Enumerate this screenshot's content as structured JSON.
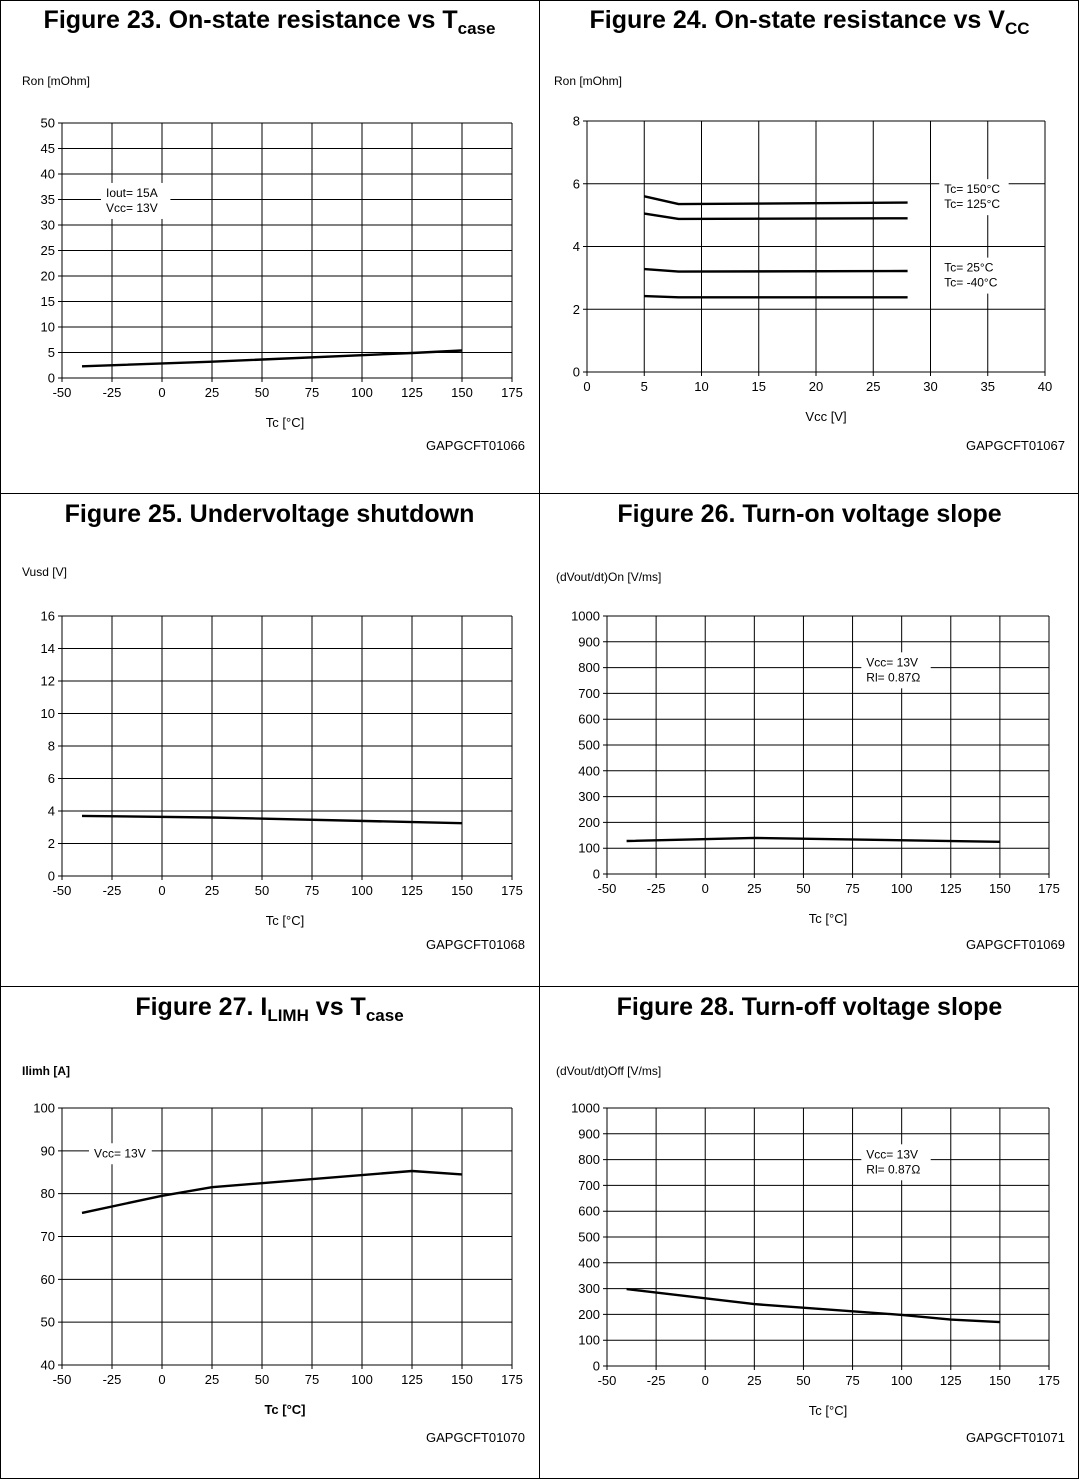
{
  "figures": [
    {
      "title_main": "Figure 23. On-state resistance vs T",
      "title_sub": "case",
      "code": "GAPGCFT01066",
      "chart_data": {
        "type": "line",
        "xlabel": "Tc [°C]",
        "ylabel": "Ron [mOhm]",
        "xlim": [
          -50,
          175
        ],
        "xticks": [
          -50,
          -25,
          0,
          25,
          50,
          75,
          100,
          125,
          150,
          175
        ],
        "ylim": [
          0,
          50
        ],
        "yticks": [
          0,
          5,
          10,
          15,
          20,
          25,
          30,
          35,
          40,
          45,
          50
        ],
        "label_bold": false,
        "series": [
          {
            "x": [
              -40,
              25,
              125,
              150
            ],
            "y": [
              2.3,
              3.2,
              4.9,
              5.4
            ]
          }
        ],
        "annotations": [
          {
            "lines": [
              "Iout= 15A",
              "Vcc= 13V"
            ],
            "x": -28,
            "y": 35.5
          }
        ]
      }
    },
    {
      "title_main": "Figure 24. On-state resistance vs V",
      "title_sub": "CC",
      "code": "GAPGCFT01067",
      "chart_data": {
        "type": "line",
        "xlabel": "Vcc [V]",
        "ylabel": "Ron [mOhm]",
        "xlim": [
          0,
          40
        ],
        "xticks": [
          0,
          5,
          10,
          15,
          20,
          25,
          30,
          35,
          40
        ],
        "ylim": [
          0,
          8
        ],
        "yticks": [
          0,
          2,
          4,
          6,
          8
        ],
        "label_bold": false,
        "series": [
          {
            "x": [
              5,
              8,
              28
            ],
            "y": [
              5.6,
              5.35,
              5.4
            ]
          },
          {
            "x": [
              5,
              8,
              28
            ],
            "y": [
              5.05,
              4.88,
              4.9
            ]
          },
          {
            "x": [
              5,
              8,
              28
            ],
            "y": [
              3.28,
              3.2,
              3.22
            ]
          },
          {
            "x": [
              5,
              8,
              28
            ],
            "y": [
              2.42,
              2.38,
              2.38
            ]
          }
        ],
        "annotations": [
          {
            "lines": [
              "Tc= 150°C",
              "Tc= 125°C"
            ],
            "x": 31.2,
            "y": 5.7
          },
          {
            "lines": [
              "Tc= 25°C",
              "Tc= -40°C"
            ],
            "x": 31.2,
            "y": 3.2
          }
        ]
      }
    },
    {
      "title_main": "Figure 25. Undervoltage shutdown",
      "title_sub": "",
      "code": "GAPGCFT01068",
      "chart_data": {
        "type": "line",
        "xlabel": "Tc [°C]",
        "ylabel": "Vusd [V]",
        "xlim": [
          -50,
          175
        ],
        "xticks": [
          -50,
          -25,
          0,
          25,
          50,
          75,
          100,
          125,
          150,
          175
        ],
        "ylim": [
          0,
          16
        ],
        "yticks": [
          0,
          2,
          4,
          6,
          8,
          10,
          12,
          14,
          16
        ],
        "label_bold": false,
        "series": [
          {
            "x": [
              -40,
              25,
              150
            ],
            "y": [
              3.7,
              3.6,
              3.25
            ]
          }
        ],
        "annotations": []
      }
    },
    {
      "title_main": "Figure 26. Turn-on voltage slope",
      "title_sub": "",
      "code": "GAPGCFT01069",
      "chart_data": {
        "type": "line",
        "xlabel": "Tc [°C]",
        "ylabel": "(dVout/dt)On [V/ms]",
        "xlim": [
          -50,
          175
        ],
        "xticks": [
          -50,
          -25,
          0,
          25,
          50,
          75,
          100,
          125,
          150,
          175
        ],
        "ylim": [
          0,
          1000
        ],
        "yticks": [
          0,
          100,
          200,
          300,
          400,
          500,
          600,
          700,
          800,
          900,
          1000
        ],
        "label_bold": false,
        "series": [
          {
            "x": [
              -40,
              25,
              150
            ],
            "y": [
              128,
              140,
              125
            ]
          }
        ],
        "annotations": [
          {
            "lines": [
              "Vcc= 13V",
              "Rl= 0.87Ω"
            ],
            "x": 82,
            "y": 805
          }
        ]
      }
    },
    {
      "title_main": "Figure 27. I",
      "title_sub": "LIMH",
      "title_main2": " vs T",
      "title_sub2": "case",
      "code": "GAPGCFT01070",
      "chart_data": {
        "type": "line",
        "xlabel": "Tc [°C]",
        "ylabel": "Ilimh [A]",
        "xlim": [
          -50,
          175
        ],
        "xticks": [
          -50,
          -25,
          0,
          25,
          50,
          75,
          100,
          125,
          150,
          175
        ],
        "ylim": [
          40,
          100
        ],
        "yticks": [
          40,
          50,
          60,
          70,
          80,
          90,
          100
        ],
        "label_bold": true,
        "series": [
          {
            "x": [
              -40,
              0,
              25,
              125,
              150
            ],
            "y": [
              75.5,
              79.5,
              81.5,
              85.3,
              84.5
            ]
          }
        ],
        "annotations": [
          {
            "lines": [
              "Vcc= 13V"
            ],
            "x": -34,
            "y": 88.5
          }
        ]
      }
    },
    {
      "title_main": "Figure 28. Turn-off voltage slope",
      "title_sub": "",
      "code": "GAPGCFT01071",
      "chart_data": {
        "type": "line",
        "xlabel": "Tc [°C]",
        "ylabel": "(dVout/dt)Off [V/ms]",
        "xlim": [
          -50,
          175
        ],
        "xticks": [
          -50,
          -25,
          0,
          25,
          50,
          75,
          100,
          125,
          150,
          175
        ],
        "ylim": [
          0,
          1000
        ],
        "yticks": [
          0,
          100,
          200,
          300,
          400,
          500,
          600,
          700,
          800,
          900,
          1000
        ],
        "label_bold": false,
        "series": [
          {
            "x": [
              -40,
              25,
              100,
              125,
              150
            ],
            "y": [
              298,
              240,
              198,
              180,
              170
            ]
          }
        ],
        "annotations": [
          {
            "lines": [
              "Vcc= 13V",
              "Rl= 0.87Ω"
            ],
            "x": 82,
            "y": 805
          }
        ]
      }
    }
  ]
}
